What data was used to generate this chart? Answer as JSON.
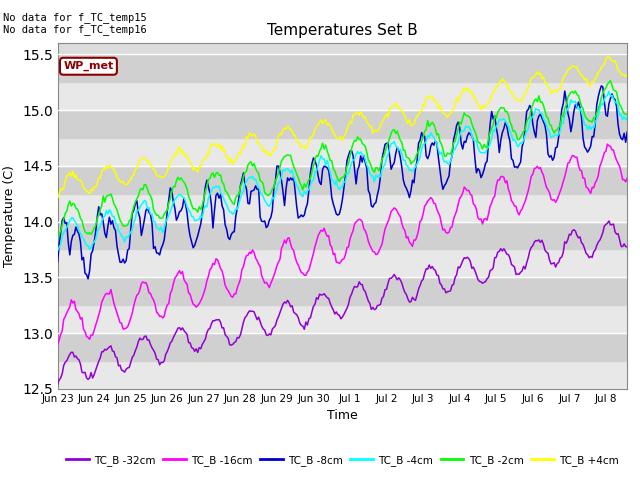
{
  "title": "Temperatures Set B",
  "xlabel": "Time",
  "ylabel": "Temperature (C)",
  "ylim": [
    12.5,
    15.6
  ],
  "xlim": [
    0,
    374
  ],
  "bg_color": "#dcdcdc",
  "text_annotations": [
    "No data for f_TC_temp15",
    "No data for f_TC_temp16"
  ],
  "wp_met_label": "WP_met",
  "x_tick_labels": [
    "Jun 23",
    "Jun 24",
    "Jun 25",
    "Jun 26",
    "Jun 27",
    "Jun 28",
    "Jun 29",
    "Jun 30",
    "Jul 1",
    "Jul 2",
    "Jul 3",
    "Jul 4",
    "Jul 5",
    "Jul 6",
    "Jul 7",
    "Jul 8"
  ],
  "series": [
    {
      "label": "TC_B -32cm",
      "color": "#9400D3",
      "base_start": 12.65,
      "base_end": 13.9,
      "amplitude": 0.13,
      "period_scale": 1.0,
      "sharp": false
    },
    {
      "label": "TC_B -16cm",
      "color": "#FF00FF",
      "base_start": 13.05,
      "base_end": 14.55,
      "amplitude": 0.18,
      "period_scale": 1.0,
      "sharp": false
    },
    {
      "label": "TC_B -8cm",
      "color": "#0000CD",
      "base_start": 13.65,
      "base_end": 14.9,
      "amplitude": 0.35,
      "period_scale": 1.0,
      "sharp": true
    },
    {
      "label": "TC_B -4cm",
      "color": "#00FFFF",
      "base_start": 13.85,
      "base_end": 15.05,
      "amplitude": 0.14,
      "period_scale": 1.0,
      "sharp": false
    },
    {
      "label": "TC_B -2cm",
      "color": "#00FF00",
      "base_start": 13.98,
      "base_end": 15.12,
      "amplitude": 0.16,
      "period_scale": 1.0,
      "sharp": false
    },
    {
      "label": "TC_B +4cm",
      "color": "#FFFF00",
      "base_start": 14.3,
      "base_end": 15.4,
      "amplitude": 0.1,
      "period_scale": 1.0,
      "sharp": false
    }
  ],
  "n_points": 375,
  "period": 23.5,
  "legend_colors": [
    "#9400D3",
    "#FF00FF",
    "#0000CD",
    "#00FFFF",
    "#00FF00",
    "#FFFF00"
  ],
  "legend_labels": [
    "TC_B -32cm",
    "TC_B -16cm",
    "TC_B -8cm",
    "TC_B -4cm",
    "TC_B -2cm",
    "TC_B +4cm"
  ]
}
